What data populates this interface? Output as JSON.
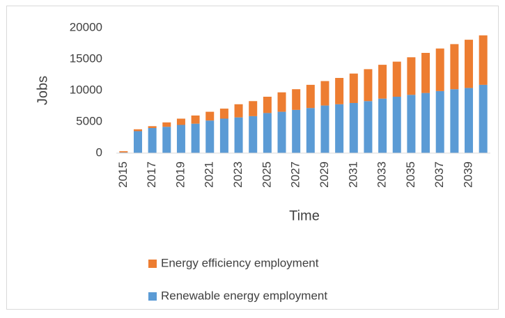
{
  "chart_data": {
    "type": "stacked-bar",
    "x_label": "Time",
    "y_label": "Jobs",
    "categories": [
      "2015",
      null,
      "2017",
      null,
      "2019",
      null,
      "2021",
      null,
      "2023",
      null,
      "2025",
      null,
      "2027",
      null,
      "2029",
      null,
      "2031",
      null,
      "2033",
      null,
      "2035",
      null,
      "2037",
      null,
      "2039",
      null
    ],
    "series": [
      {
        "name": "Renewable energy employment",
        "color": "#5b9bd5",
        "values": [
          100,
          3500,
          4000,
          4200,
          4500,
          4700,
          5200,
          5500,
          5700,
          5900,
          6400,
          6600,
          6900,
          7200,
          7600,
          7800,
          8000,
          8300,
          8700,
          9000,
          9300,
          9600,
          9900,
          10200,
          10400,
          10900
        ]
      },
      {
        "name": "Energy efficiency employment",
        "color": "#ed7d31",
        "values": [
          200,
          300,
          300,
          700,
          1000,
          1300,
          1400,
          1600,
          2100,
          2400,
          2600,
          3100,
          3300,
          3700,
          3900,
          4200,
          4700,
          5100,
          5400,
          5600,
          6000,
          6400,
          6800,
          7200,
          7700,
          7900
        ]
      }
    ],
    "ylim": [
      0,
      20000
    ],
    "yticks": [
      0,
      5000,
      10000,
      15000,
      20000
    ],
    "grid": false
  }
}
